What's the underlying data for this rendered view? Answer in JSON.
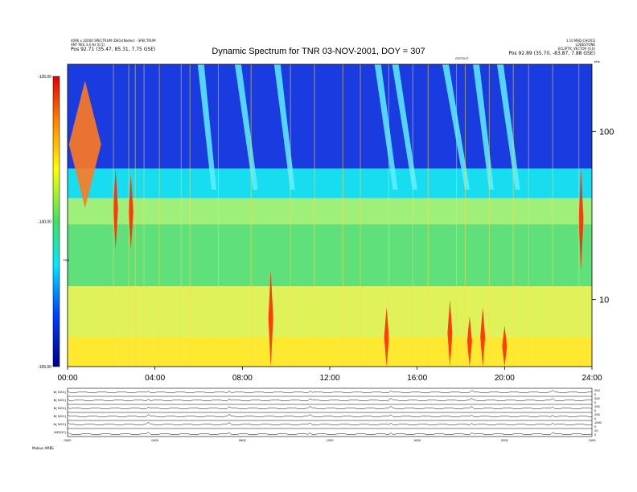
{
  "chart_data": {
    "type": "heatmap",
    "title": "Dynamic Spectrum for TNR 03-NOV-2001, DOY = 307",
    "header_left": [
      "4096 x 32000 SPECTRUM (DEG)(Nodes) - SPECTRUM",
      "ANT RES 3.4 Hz (0.5)",
      "Pos   92.71 (35.47, 85.31, 7.75 GSE)"
    ],
    "header_right": [
      "1.10 MED-CHOICE",
      "LODESTONE",
      "ECLIPTIC VECTOR (0.0)",
      "Pos   92.89 (35.70, -83.87, 7.88 GSE)"
    ],
    "ylabel_right": "kHz",
    "ylabel_left": "TNR",
    "event_marker": "GSTOUT",
    "colorbar_ticks": [
      "-125.00",
      "-140.00",
      "-155.00"
    ],
    "colorbar_range": [
      -155,
      -125
    ],
    "yticks": [
      "100",
      "10"
    ],
    "ylim": [
      4,
      250
    ],
    "yscale": "log",
    "xlim": [
      0,
      24
    ],
    "xticks": [
      "00:00",
      "04:00",
      "08:00",
      "12:00",
      "16:00",
      "20:00",
      "24:00"
    ],
    "background_bands": [
      {
        "fmin": 60,
        "fmax": 250,
        "color": "#1a3be0"
      },
      {
        "fmin": 40,
        "fmax": 60,
        "color": "#18dcef"
      },
      {
        "fmin": 28,
        "fmax": 40,
        "color": "#9ef07a"
      },
      {
        "fmin": 12,
        "fmax": 28,
        "color": "#5fe07a"
      },
      {
        "fmin": 6,
        "fmax": 12,
        "color": "#dff25a"
      },
      {
        "fmin": 4,
        "fmax": 6,
        "color": "#ffe830"
      }
    ],
    "bursts": [
      {
        "t": 0.8,
        "fmax": 200,
        "fmin": 35,
        "color": "#ff7a20"
      },
      {
        "t": 2.2,
        "fmax": 60,
        "fmin": 20,
        "color": "#ff2a00"
      },
      {
        "t": 2.9,
        "fmax": 55,
        "fmin": 20,
        "color": "#ff2a00"
      },
      {
        "t": 9.3,
        "fmax": 15,
        "fmin": 4,
        "color": "#ff2a00"
      },
      {
        "t": 14.6,
        "fmax": 9,
        "fmin": 4,
        "color": "#ff2a00"
      },
      {
        "t": 17.5,
        "fmax": 10,
        "fmin": 4,
        "color": "#ff2a00"
      },
      {
        "t": 18.4,
        "fmax": 8,
        "fmin": 4,
        "color": "#ff2a00"
      },
      {
        "t": 19.0,
        "fmax": 9,
        "fmin": 4,
        "color": "#ff2a00"
      },
      {
        "t": 20.0,
        "fmax": 7,
        "fmin": 4,
        "color": "#ff2a00"
      },
      {
        "t": 23.5,
        "fmax": 60,
        "fmin": 15,
        "color": "#ff2a00"
      }
    ],
    "type3_drifts": [
      {
        "t": 6.1,
        "dt": 0.6
      },
      {
        "t": 7.8,
        "dt": 0.8
      },
      {
        "t": 9.6,
        "dt": 0.7
      },
      {
        "t": 14.2,
        "dt": 0.8
      },
      {
        "t": 15.0,
        "dt": 0.9
      },
      {
        "t": 17.3,
        "dt": 1.0
      },
      {
        "t": 18.7,
        "dt": 0.7
      },
      {
        "t": 19.8,
        "dt": 0.8
      }
    ],
    "panels": [
      {
        "label": "B( NGC)",
        "ticks": [
          "200",
          "0"
        ]
      },
      {
        "label": "B( NGC)",
        "ticks": [
          "200",
          "0"
        ]
      },
      {
        "label": "B( NGC)",
        "ticks": [
          "200",
          "0"
        ]
      },
      {
        "label": "B( NGC)",
        "ticks": [
          "200",
          "0"
        ]
      },
      {
        "label": "N( NGC)",
        "ticks": [
          "1000",
          "0"
        ]
      },
      {
        "label": "IMF(NT)",
        "ticks": [
          "20",
          "0"
        ]
      }
    ],
    "panel_xticks": [
      "0000",
      "0400",
      "0800",
      "1200",
      "1600",
      "2000",
      "2400"
    ],
    "footer_left": "Mobius   AMBS"
  }
}
